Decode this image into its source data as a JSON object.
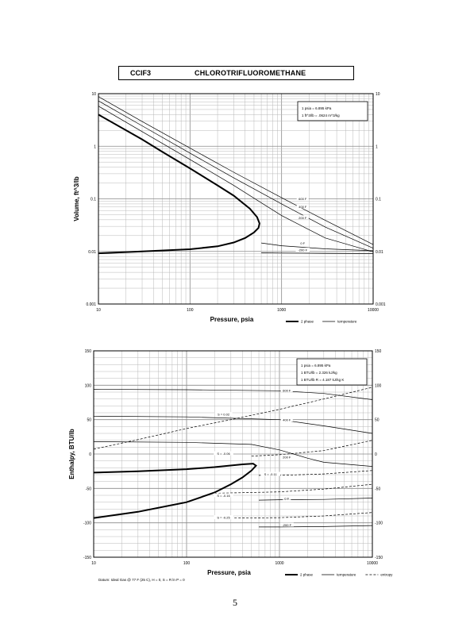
{
  "header": {
    "formula": "CClF3",
    "name": "CHLOROTRIFLUOROMETHANE"
  },
  "page_number": "5",
  "footnote": "Datum: Ideal Gas @ 77 F (25 C), H = 0, S = R ln P = 0",
  "colors": {
    "ink": "#000000",
    "grid": "#8a8a8a",
    "grid_minor": "#b8b8b8"
  },
  "chart_data": [
    {
      "type": "line",
      "title": "",
      "xlabel": "Pressure,  psia",
      "ylabel": "Volume, ft^3/lb",
      "xscale": "log",
      "yscale": "log",
      "xlim": [
        10,
        10000
      ],
      "ylim": [
        0.001,
        10
      ],
      "xticks": [
        "10",
        "100",
        "1000",
        "10000"
      ],
      "yticks": [
        "0.001",
        "0.01",
        "0.1",
        "1",
        "10"
      ],
      "right_yticks": [
        "0.001",
        "0.01",
        "0.1",
        "1",
        "10"
      ],
      "grid": true,
      "legend_position": "bottom-right",
      "legend": [
        {
          "label": "2 phase",
          "style": "thick"
        },
        {
          "label": "temperature",
          "style": "thin"
        }
      ],
      "info_box": [
        "1 psia  =  6.895 kPa",
        "1 ft^3/lb  =  .0624 m^3/kg"
      ],
      "series": [
        {
          "kind": "two-phase",
          "points": [
            [
              10,
              0.0092
            ],
            [
              30,
              0.01
            ],
            [
              100,
              0.011
            ],
            [
              200,
              0.0125
            ],
            [
              300,
              0.0148
            ],
            [
              400,
              0.018
            ],
            [
              500,
              0.023
            ],
            [
              560,
              0.028
            ],
            [
              575,
              0.034
            ],
            [
              540,
              0.045
            ],
            [
              450,
              0.065
            ],
            [
              300,
              0.115
            ],
            [
              200,
              0.18
            ],
            [
              100,
              0.38
            ],
            [
              50,
              0.78
            ],
            [
              30,
              1.35
            ],
            [
              10,
              4.0
            ]
          ]
        },
        {
          "name": "600 F",
          "points": [
            [
              10,
              8.8
            ],
            [
              30,
              2.95
            ],
            [
              100,
              0.92
            ],
            [
              300,
              0.32
            ],
            [
              1000,
              0.105
            ],
            [
              3000,
              0.039
            ],
            [
              10000,
              0.0135
            ]
          ]
        },
        {
          "name": "400 F",
          "points": [
            [
              10,
              7.3
            ],
            [
              30,
              2.45
            ],
            [
              100,
              0.74
            ],
            [
              300,
              0.25
            ],
            [
              1000,
              0.08
            ],
            [
              3000,
              0.029
            ],
            [
              10000,
              0.0115
            ]
          ]
        },
        {
          "name": "200 F",
          "points": [
            [
              10,
              5.8
            ],
            [
              30,
              1.9
            ],
            [
              100,
              0.56
            ],
            [
              300,
              0.18
            ],
            [
              1000,
              0.048
            ],
            [
              3000,
              0.018
            ],
            [
              10000,
              0.0098
            ]
          ]
        },
        {
          "name": "0 F",
          "points": [
            [
              600,
              0.0145
            ],
            [
              1000,
              0.0128
            ],
            [
              3000,
              0.0112
            ],
            [
              10000,
              0.0103
            ]
          ]
        },
        {
          "name": "-200 F",
          "points": [
            [
              600,
              0.0094
            ],
            [
              1000,
              0.0093
            ],
            [
              3000,
              0.0092
            ],
            [
              10000,
              0.0091
            ]
          ]
        }
      ],
      "curve_labels": [
        {
          "text": "600 F",
          "at": [
            1700,
            0.098
          ]
        },
        {
          "text": "400 F",
          "at": [
            1700,
            0.07
          ]
        },
        {
          "text": "200 F",
          "at": [
            1700,
            0.043
          ]
        },
        {
          "text": "0 F",
          "at": [
            1700,
            0.014
          ]
        },
        {
          "text": "-200 F",
          "at": [
            1700,
            0.0104
          ]
        }
      ]
    },
    {
      "type": "line",
      "title": "",
      "xlabel": "Pressure,  psia",
      "ylabel": "Enthalpy, BTU/lb",
      "xscale": "log",
      "yscale": "linear",
      "xlim": [
        10,
        10000
      ],
      "ylim": [
        -150,
        150
      ],
      "xticks": [
        "10",
        "100",
        "1000",
        "10000"
      ],
      "yticks": [
        "-150",
        "-100",
        "-50",
        "0",
        "50",
        "100",
        "150"
      ],
      "right_yticks": [
        "-150",
        "-100",
        "-50",
        "0",
        "50",
        "100",
        "150"
      ],
      "grid": true,
      "legend_position": "bottom-right",
      "legend": [
        {
          "label": "2 phase",
          "style": "thick"
        },
        {
          "label": "temperature",
          "style": "thin"
        },
        {
          "label": "entropy",
          "style": "dashed"
        }
      ],
      "info_box": [
        "1 psia  =  6.895 kPa",
        "1 BTU/lb  =  2.326 kJ/kg",
        "1 BTU/lb R  =  4.187 kJ/kg K"
      ],
      "series": [
        {
          "kind": "two-phase",
          "points": [
            [
              10,
              -93
            ],
            [
              30,
              -84
            ],
            [
              100,
              -70
            ],
            [
              200,
              -56
            ],
            [
              300,
              -44
            ],
            [
              400,
              -34
            ],
            [
              500,
              -24
            ],
            [
              560,
              -17
            ],
            [
              520,
              -14
            ],
            [
              400,
              -15
            ],
            [
              200,
              -19
            ],
            [
              100,
              -22
            ],
            [
              30,
              -25
            ],
            [
              10,
              -27
            ]
          ]
        },
        {
          "name": "600 F",
          "points": [
            [
              10,
              94
            ],
            [
              100,
              93.5
            ],
            [
              1000,
              92
            ],
            [
              3000,
              88
            ],
            [
              10000,
              79
            ]
          ]
        },
        {
          "name": "400 F",
          "points": [
            [
              10,
              55
            ],
            [
              100,
              54
            ],
            [
              1000,
              50
            ],
            [
              3000,
              41
            ],
            [
              10000,
              30
            ]
          ]
        },
        {
          "name": "200 F",
          "points": [
            [
              10,
              18
            ],
            [
              100,
              17
            ],
            [
              500,
              14
            ],
            [
              1000,
              6
            ],
            [
              2000,
              -6
            ],
            [
              3000,
              -12
            ],
            [
              10000,
              -18
            ]
          ]
        },
        {
          "name": "0 F",
          "points": [
            [
              600,
              -67
            ],
            [
              1000,
              -66.5
            ],
            [
              3000,
              -66
            ],
            [
              10000,
              -64
            ]
          ]
        },
        {
          "name": "-200 F",
          "points": [
            [
              600,
              -106
            ],
            [
              1000,
              -106
            ],
            [
              3000,
              -105.5
            ],
            [
              10000,
              -104
            ]
          ]
        },
        {
          "name": "S = 0.02",
          "style": "dashed",
          "points": [
            [
              10,
              7
            ],
            [
              30,
              21
            ],
            [
              100,
              37
            ],
            [
              300,
              50
            ],
            [
              1000,
              65
            ],
            [
              3000,
              80
            ],
            [
              10000,
              97
            ]
          ]
        },
        {
          "name": "S = -0.06",
          "style": "dashed",
          "points": [
            [
              500,
              -3
            ],
            [
              1000,
              -1
            ],
            [
              3000,
              5
            ],
            [
              10000,
              20
            ]
          ]
        },
        {
          "name": "S = -0.11",
          "style": "dashed",
          "points": [
            [
              600,
              -31
            ],
            [
              1000,
              -31
            ],
            [
              3000,
              -29
            ],
            [
              10000,
              -24
            ]
          ]
        },
        {
          "name": "S = -0.16",
          "style": "dashed",
          "points": [
            [
              200,
              -57
            ],
            [
              300,
              -56.5
            ],
            [
              1000,
              -55
            ],
            [
              3000,
              -51
            ],
            [
              10000,
              -44
            ]
          ]
        },
        {
          "name": "S = -0.25",
          "style": "dashed",
          "points": [
            [
              200,
              -93
            ],
            [
              300,
              -93
            ],
            [
              1000,
              -92.5
            ],
            [
              3000,
              -90
            ],
            [
              10000,
              -85
            ]
          ]
        }
      ],
      "curve_labels": [
        {
          "text": "600 F",
          "at": [
            1200,
            92
          ]
        },
        {
          "text": "400 F",
          "at": [
            1200,
            49
          ]
        },
        {
          "text": "200 F",
          "at": [
            1200,
            -5
          ]
        },
        {
          "text": "0 F",
          "at": [
            1200,
            -65
          ]
        },
        {
          "text": "-200 F",
          "at": [
            1200,
            -104
          ]
        },
        {
          "text": "S = 0.02",
          "at": [
            250,
            57
          ]
        },
        {
          "text": "S = -0.06",
          "at": [
            250,
            0
          ]
        },
        {
          "text": "S = -0.11",
          "at": [
            800,
            -30
          ]
        },
        {
          "text": "S = -0.16",
          "at": [
            250,
            -61
          ]
        },
        {
          "text": "S = -0.25",
          "at": [
            250,
            -93
          ]
        }
      ]
    }
  ]
}
